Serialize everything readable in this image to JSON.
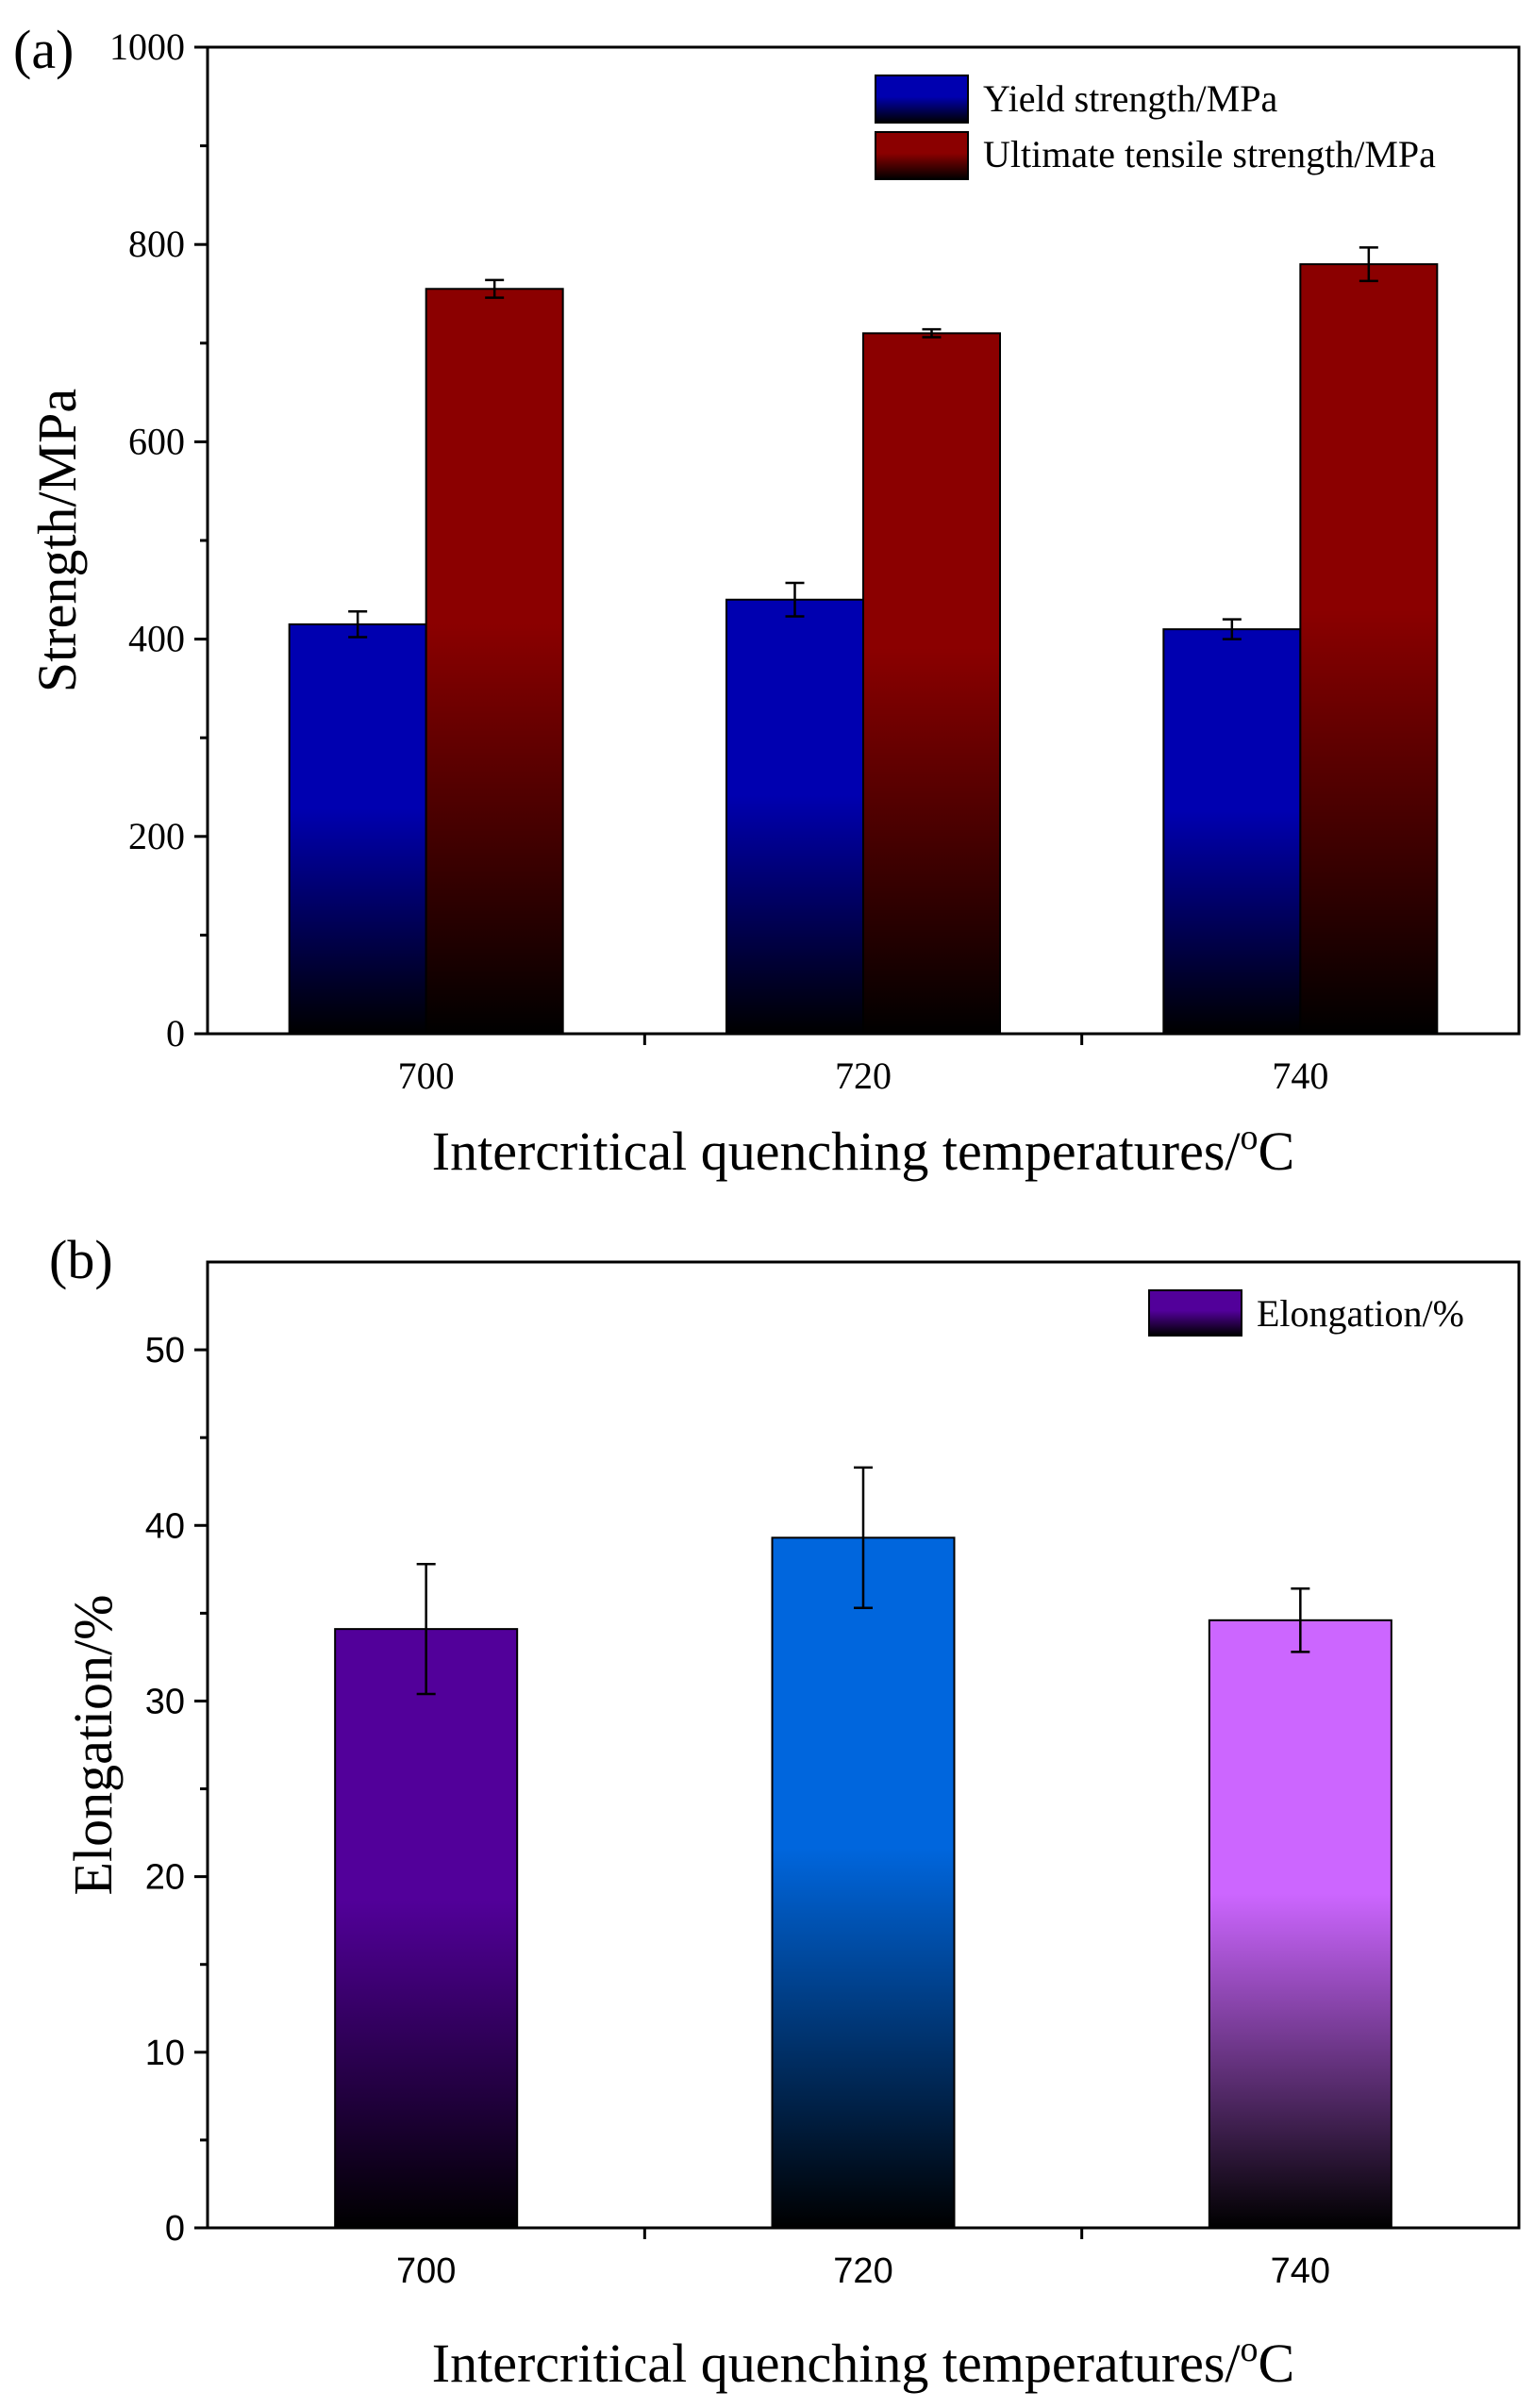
{
  "chart_data": [
    {
      "panel_label": "(a)",
      "type": "bar",
      "categories": [
        "700",
        "720",
        "740"
      ],
      "series": [
        {
          "name": "Yield strength/MPa",
          "values": [
            415,
            440,
            410
          ],
          "errors": [
            13,
            17,
            10
          ],
          "color": "#0000b0"
        },
        {
          "name": "Ultimate tensile strength/MPa",
          "values": [
            755,
            710,
            780
          ],
          "errors": [
            9,
            4,
            17
          ],
          "color": "#8b0000"
        }
      ],
      "xlabel": "Intercritical quenching temperatures/",
      "xlabel_sup": "o",
      "xlabel_unit": "C",
      "ylabel": "Strength/MPa",
      "ylim": [
        0,
        1000
      ],
      "yticks": [
        "0",
        "200",
        "400",
        "600",
        "800",
        "1000"
      ],
      "ytick_values": [
        0,
        200,
        400,
        600,
        800,
        1000
      ],
      "legend": [
        "Yield strength/MPa",
        "Ultimate tensile strength/MPa"
      ],
      "legend_position": "top-right",
      "grid": false
    },
    {
      "panel_label": "(b)",
      "type": "bar",
      "categories": [
        "700",
        "720",
        "740"
      ],
      "series": [
        {
          "name": "Elongation/%",
          "values": [
            34.1,
            39.3,
            34.6
          ],
          "errors": [
            3.7,
            4.0,
            1.8
          ],
          "colors": [
            "#52009a",
            "#0066dd",
            "#cc66ff"
          ]
        }
      ],
      "xlabel": "Intercritical quenching temperatures/",
      "xlabel_sup": "o",
      "xlabel_unit": "C",
      "ylabel": "Elongation/%",
      "ylim": [
        0,
        55
      ],
      "yticks": [
        "0",
        "10",
        "20",
        "30",
        "40",
        "50"
      ],
      "ytick_values": [
        0,
        10,
        20,
        30,
        40,
        50
      ],
      "legend": [
        "Elongation/%"
      ],
      "legend_color": "#52009a",
      "legend_position": "top-right",
      "grid": false
    }
  ]
}
